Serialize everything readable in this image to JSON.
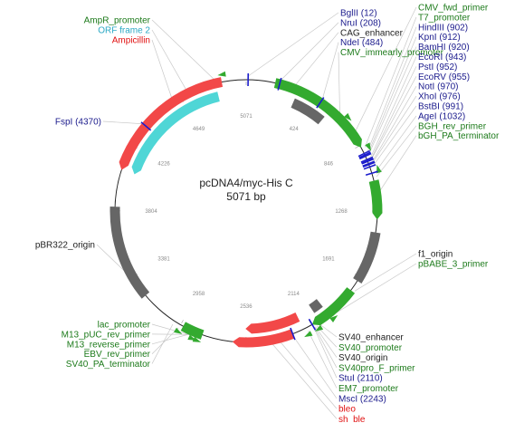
{
  "plasmid": {
    "name": "pcDNA4/myc-His C",
    "size": "5071 bp",
    "total_bp": 5071
  },
  "colors": {
    "green_feature": "#33aa2f",
    "gray_feature": "#666666",
    "red_feature": "#f24848",
    "cyan_feature": "#4fd6d6",
    "blue_site": "#1b1ccc",
    "dark_green_text": "#1c7a1a",
    "cyan_text": "#2aa8c4",
    "red_text": "#e01010",
    "navy_text": "#1a1a8c",
    "black_text": "#222222",
    "leader": "#c8c8c8"
  },
  "ticks": [
    {
      "label": "5071",
      "bp": 0
    },
    {
      "label": "424",
      "bp": 424
    },
    {
      "label": "846",
      "bp": 846
    },
    {
      "label": "1268",
      "bp": 1268
    },
    {
      "label": "1691",
      "bp": 1691
    },
    {
      "label": "2114",
      "bp": 2114
    },
    {
      "label": "2536",
      "bp": 2536
    },
    {
      "label": "2958",
      "bp": 2958
    },
    {
      "label": "3381",
      "bp": 3381
    },
    {
      "label": "3804",
      "bp": 3804
    },
    {
      "label": "4226",
      "bp": 4226
    },
    {
      "label": "4649",
      "bp": 4649
    }
  ],
  "labels": [
    {
      "id": "ampr-promoter",
      "text": "AmpR_promoter",
      "color": "dark_green_text",
      "anchor": "end",
      "bp": 4880
    },
    {
      "id": "orf-frame-2",
      "text": "ORF frame 2",
      "color": "cyan_text",
      "anchor": "end",
      "bp": 4700
    },
    {
      "id": "ampicillin",
      "text": "Ampicillin",
      "color": "red_text",
      "anchor": "end",
      "bp": 4600
    },
    {
      "id": "fspi",
      "text": "FspI (4370)",
      "color": "navy_text",
      "anchor": "end",
      "bp": 4370
    },
    {
      "id": "pbr322-origin",
      "text": "pBR322_origin",
      "color": "black_text",
      "anchor": "end",
      "bp": 3420
    },
    {
      "id": "bglii",
      "text": "BglII (12)",
      "color": "navy_text",
      "anchor": "start",
      "bp": 12
    },
    {
      "id": "nrui",
      "text": "NruI (208)",
      "color": "navy_text",
      "anchor": "start",
      "bp": 208
    },
    {
      "id": "cag-enhancer",
      "text": "CAG_enhancer",
      "color": "black_text",
      "anchor": "start",
      "bp": 300
    },
    {
      "id": "ndei",
      "text": "NdeI (484)",
      "color": "navy_text",
      "anchor": "start",
      "bp": 484
    },
    {
      "id": "cmv-immearly-promoter",
      "text": "CMV_immearly_promoter",
      "color": "dark_green_text",
      "anchor": "start",
      "bp": 620
    },
    {
      "id": "cmv-fwd-primer",
      "text": "CMV_fwd_primer",
      "color": "dark_green_text",
      "anchor": "start",
      "bp": 760
    },
    {
      "id": "t7-promoter",
      "text": "T7_promoter",
      "color": "dark_green_text",
      "anchor": "start",
      "bp": 870
    },
    {
      "id": "hindiii",
      "text": "HindIII (902)",
      "color": "navy_text",
      "anchor": "start",
      "bp": 902
    },
    {
      "id": "kpni",
      "text": "KpnI (912)",
      "color": "navy_text",
      "anchor": "start",
      "bp": 912
    },
    {
      "id": "bamhi",
      "text": "BamHI (920)",
      "color": "navy_text",
      "anchor": "start",
      "bp": 920
    },
    {
      "id": "ecori",
      "text": "EcoRI (943)",
      "color": "navy_text",
      "anchor": "start",
      "bp": 943
    },
    {
      "id": "psti",
      "text": "PstI (952)",
      "color": "navy_text",
      "anchor": "start",
      "bp": 952
    },
    {
      "id": "ecorv",
      "text": "EcoRV (955)",
      "color": "navy_text",
      "anchor": "start",
      "bp": 955
    },
    {
      "id": "noti",
      "text": "NotI (970)",
      "color": "navy_text",
      "anchor": "start",
      "bp": 970
    },
    {
      "id": "xhoi",
      "text": "XhoI (976)",
      "color": "navy_text",
      "anchor": "start",
      "bp": 976
    },
    {
      "id": "bstbi",
      "text": "BstBI (991)",
      "color": "navy_text",
      "anchor": "start",
      "bp": 991
    },
    {
      "id": "agei",
      "text": "AgeI (1032)",
      "color": "navy_text",
      "anchor": "start",
      "bp": 1032
    },
    {
      "id": "bgh-rev-primer",
      "text": "BGH_rev_primer",
      "color": "dark_green_text",
      "anchor": "start",
      "bp": 1060
    },
    {
      "id": "bgh-pa-terminator",
      "text": "bGH_PA_terminator",
      "color": "dark_green_text",
      "anchor": "start",
      "bp": 1150
    },
    {
      "id": "f1-origin",
      "text": "f1_origin",
      "color": "black_text",
      "anchor": "start",
      "bp": 1780
    },
    {
      "id": "pbabe-3-primer",
      "text": "pBABE_3_primer",
      "color": "dark_green_text",
      "anchor": "start",
      "bp": 1990
    },
    {
      "id": "sv40-enhancer",
      "text": "SV40_enhancer",
      "color": "black_text",
      "anchor": "start",
      "bp": 2070
    },
    {
      "id": "sv40-promoter",
      "text": "SV40_promoter",
      "color": "dark_green_text",
      "anchor": "start",
      "bp": 2090
    },
    {
      "id": "sv40-origin",
      "text": "SV40_origin",
      "color": "black_text",
      "anchor": "start",
      "bp": 2100
    },
    {
      "id": "sv40pro-f-primer",
      "text": "SV40pro_F_primer",
      "color": "dark_green_text",
      "anchor": "start",
      "bp": 2105
    },
    {
      "id": "stui",
      "text": "StuI (2110)",
      "color": "navy_text",
      "anchor": "start",
      "bp": 2110
    },
    {
      "id": "em7-promoter",
      "text": "EM7_promoter",
      "color": "dark_green_text",
      "anchor": "start",
      "bp": 2150
    },
    {
      "id": "msci",
      "text": "MscI (2243)",
      "color": "navy_text",
      "anchor": "start",
      "bp": 2243
    },
    {
      "id": "bleo",
      "text": "bleo",
      "color": "red_text",
      "anchor": "start",
      "bp": 2330
    },
    {
      "id": "sh-ble",
      "text": "sh_ble",
      "color": "red_text",
      "anchor": "start",
      "bp": 2380
    },
    {
      "id": "lac-promoter",
      "text": "lac_promoter",
      "color": "dark_green_text",
      "anchor": "end",
      "bp": 2830
    },
    {
      "id": "m13-puc-rev-primer",
      "text": "M13_pUC_rev_primer",
      "color": "dark_green_text",
      "anchor": "end",
      "bp": 2870
    },
    {
      "id": "m13-reverse-primer",
      "text": "M13_reverse_primer",
      "color": "dark_green_text",
      "anchor": "end",
      "bp": 2880
    },
    {
      "id": "ebv-rev-primer",
      "text": "EBV_rev_primer",
      "color": "dark_green_text",
      "anchor": "end",
      "bp": 2960
    },
    {
      "id": "sv40-pa-terminator",
      "text": "SV40_PA_terminator",
      "color": "dark_green_text",
      "anchor": "end",
      "bp": 3000
    }
  ],
  "features": [
    {
      "id": "cmv-enhancer-arc",
      "color": "green_feature",
      "start": 180,
      "end": 860,
      "ring": 0,
      "dir": 1
    },
    {
      "id": "cag-enhancer-box",
      "color": "gray_feature",
      "start": 330,
      "end": 560,
      "ring": 1,
      "dir": 0
    },
    {
      "id": "bgh-pa-arc",
      "color": "green_feature",
      "start": 1080,
      "end": 1320,
      "ring": 0,
      "dir": 1
    },
    {
      "id": "f1-origin-box",
      "color": "gray_feature",
      "start": 1400,
      "end": 1720,
      "ring": 0,
      "dir": 0
    },
    {
      "id": "sv40-promoter-arc",
      "color": "green_feature",
      "start": 1790,
      "end": 2110,
      "ring": 0,
      "dir": 1
    },
    {
      "id": "sv40-origin-box",
      "color": "gray_feature",
      "start": 1990,
      "end": 2060,
      "ring": 1,
      "dir": 0
    },
    {
      "id": "sh-ble-arc",
      "color": "red_feature",
      "start": 2170,
      "end": 2540,
      "ring": 1,
      "dir": 1
    },
    {
      "id": "bleo-arc",
      "color": "red_feature",
      "start": 2240,
      "end": 2620,
      "ring": 0,
      "dir": 1
    },
    {
      "id": "sv40-pa-box",
      "color": "green_feature",
      "start": 2810,
      "end": 2940,
      "ring": 0,
      "dir": 0
    },
    {
      "id": "pbr322-origin-box",
      "color": "gray_feature",
      "start": 3240,
      "end": 3830,
      "ring": 0,
      "dir": 0
    },
    {
      "id": "ampicillin-arc",
      "color": "red_feature",
      "start": 4060,
      "end": 4920,
      "ring": 0,
      "dir": -1
    },
    {
      "id": "orf-frame-2-arc",
      "color": "cyan_feature",
      "start": 4060,
      "end": 4880,
      "ring": 1,
      "dir": -1
    }
  ],
  "primers": [
    {
      "id": "cmv-primer-mark",
      "bp": 660,
      "dir": 1
    },
    {
      "id": "t7-primer-mark",
      "bp": 870,
      "dir": 1
    },
    {
      "id": "bgh-rev-mark",
      "bp": 1030,
      "dir": -1
    },
    {
      "id": "pbabe-mark",
      "bp": 1990,
      "dir": -1
    },
    {
      "id": "sv40pro-mark",
      "bp": 2080,
      "dir": 1
    },
    {
      "id": "em7-mark",
      "bp": 2150,
      "dir": 1
    },
    {
      "id": "lac-mark",
      "bp": 2840,
      "dir": -1
    },
    {
      "id": "m13-mark",
      "bp": 2870,
      "dir": -1
    },
    {
      "id": "ebv-mark",
      "bp": 2960,
      "dir": -1
    },
    {
      "id": "ampr-promoter-mark",
      "bp": 4940,
      "dir": -1
    }
  ],
  "sites": [
    {
      "id": "bglii-site",
      "bp": 12
    },
    {
      "id": "nrui-site",
      "bp": 208
    },
    {
      "id": "ndei-site",
      "bp": 484
    },
    {
      "id": "hindiii-site",
      "bp": 902
    },
    {
      "id": "kpni-site",
      "bp": 912
    },
    {
      "id": "bamhi-site",
      "bp": 920
    },
    {
      "id": "ecori-site",
      "bp": 943
    },
    {
      "id": "psti-site",
      "bp": 952
    },
    {
      "id": "ecorv-site",
      "bp": 955
    },
    {
      "id": "noti-site",
      "bp": 970
    },
    {
      "id": "xhoi-site",
      "bp": 976
    },
    {
      "id": "bstbi-site",
      "bp": 991
    },
    {
      "id": "agei-site",
      "bp": 1032
    },
    {
      "id": "stui-site",
      "bp": 2110
    },
    {
      "id": "msci-site",
      "bp": 2243
    },
    {
      "id": "fspi-site",
      "bp": 4370
    }
  ]
}
